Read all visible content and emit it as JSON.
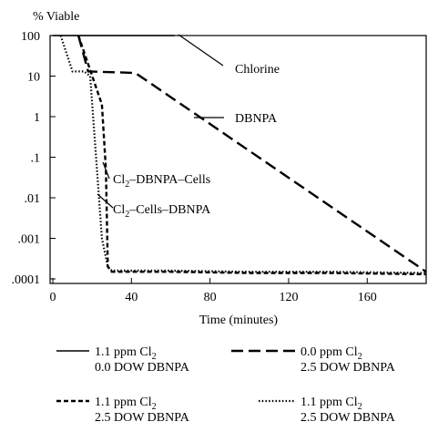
{
  "chart_data": {
    "type": "line",
    "ylabel": "% Viable",
    "xlabel": "Time (minutes)",
    "x_ticks": [
      "0",
      "40",
      "80",
      "120",
      "160"
    ],
    "y_ticks": [
      "100",
      "10",
      "1",
      ".1",
      ".01",
      ".001",
      ".0001"
    ],
    "xlim": [
      0,
      190
    ],
    "ylim": [
      0.0001,
      100
    ],
    "y_scale": "log",
    "series": [
      {
        "style": "solid",
        "legend_line1": "1.1 ppm Cl",
        "legend_sub": "2",
        "legend_line2": "0.0 DOW DBNPA",
        "x": [
          0,
          62
        ],
        "y": [
          100,
          100
        ]
      },
      {
        "style": "long-dash",
        "legend_line1": "0.0 ppm Cl",
        "legend_sub": "2",
        "legend_line2": "2.5 DOW DBNPA",
        "x": [
          13,
          18,
          42,
          190
        ],
        "y": [
          100,
          13,
          12,
          0.00015
        ]
      },
      {
        "style": "short-dash",
        "legend_line1": "1.1 ppm Cl",
        "legend_sub": "2",
        "legend_line2": "2.5 DOW DBNPA",
        "x": [
          13,
          25,
          27,
          28,
          30,
          60,
          100,
          140,
          190
        ],
        "y": [
          100,
          2,
          0.05,
          0.0002,
          0.00015,
          0.00015,
          0.00014,
          0.00014,
          0.00013
        ]
      },
      {
        "style": "dotted",
        "legend_line1": "1.1 ppm Cl",
        "legend_sub": "2",
        "legend_line2": "2.5 DOW DBNPA",
        "x": [
          4,
          10,
          16,
          19,
          22,
          25,
          28,
          30,
          60,
          100,
          140,
          190
        ],
        "y": [
          100,
          13,
          13,
          10,
          0.1,
          0.001,
          0.0002,
          0.00016,
          0.00016,
          0.00015,
          0.00015,
          0.00014
        ]
      }
    ],
    "annotations": [
      {
        "id": "chlorine",
        "text": "Chlorine",
        "sub": "",
        "text_after": ""
      },
      {
        "id": "dbnpa",
        "text": "DBNPA",
        "sub": "",
        "text_after": ""
      },
      {
        "id": "cl2-dbnpa-cells",
        "text": "Cl",
        "sub": "2",
        "text_after": "–DBNPA–Cells"
      },
      {
        "id": "cl2-cells-dbnpa",
        "text": "Cl",
        "sub": "2",
        "text_after": "–Cells–DBNPA"
      }
    ]
  }
}
